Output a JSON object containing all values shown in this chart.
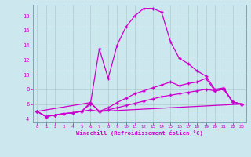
{
  "bg_color": "#cce8ee",
  "grid_color": "#aacccc",
  "line_color": "#cc00cc",
  "marker": "+",
  "xlabel": "Windchill (Refroidissement éolien,°C)",
  "xlim": [
    -0.5,
    23.5
  ],
  "ylim": [
    3.5,
    19.5
  ],
  "yticks": [
    4,
    6,
    8,
    10,
    12,
    14,
    16,
    18
  ],
  "xticks": [
    0,
    1,
    2,
    3,
    4,
    5,
    6,
    7,
    8,
    9,
    10,
    11,
    12,
    13,
    14,
    15,
    16,
    17,
    18,
    19,
    20,
    21,
    22,
    23
  ],
  "curve1_x": [
    0,
    1,
    2,
    3,
    4,
    5,
    6,
    7,
    8,
    9,
    10,
    11,
    12,
    13,
    14,
    15,
    16,
    17,
    18,
    19,
    20,
    21,
    22,
    23
  ],
  "curve1_y": [
    5.0,
    4.3,
    4.5,
    4.7,
    4.8,
    5.0,
    6.0,
    13.5,
    9.5,
    14.0,
    16.5,
    18.0,
    19.0,
    19.0,
    18.5,
    14.5,
    12.2,
    11.5,
    10.5,
    9.8,
    8.0,
    8.2,
    6.3,
    6.0
  ],
  "curve2_x": [
    0,
    1,
    2,
    3,
    4,
    5,
    6,
    7,
    8,
    9,
    10,
    11,
    12,
    13,
    14,
    15,
    16,
    17,
    18,
    19,
    20,
    21,
    22,
    23
  ],
  "curve2_y": [
    5.0,
    4.3,
    4.5,
    4.7,
    4.8,
    5.0,
    5.2,
    5.0,
    5.5,
    6.2,
    6.8,
    7.4,
    7.8,
    8.2,
    8.6,
    9.0,
    8.5,
    8.8,
    9.0,
    9.5,
    7.8,
    8.0,
    6.3,
    6.0
  ],
  "curve3_x": [
    0,
    1,
    2,
    3,
    4,
    5,
    6,
    7,
    8,
    9,
    10,
    11,
    12,
    13,
    14,
    15,
    16,
    17,
    18,
    19,
    20,
    21,
    22,
    23
  ],
  "curve3_y": [
    5.0,
    4.3,
    4.5,
    4.7,
    4.8,
    5.0,
    6.2,
    5.0,
    5.2,
    5.5,
    5.8,
    6.1,
    6.4,
    6.7,
    7.0,
    7.2,
    7.4,
    7.6,
    7.8,
    8.0,
    7.8,
    8.0,
    6.3,
    6.0
  ],
  "curve4_x": [
    0,
    6,
    7,
    23
  ],
  "curve4_y": [
    5.0,
    6.2,
    5.0,
    6.0
  ]
}
